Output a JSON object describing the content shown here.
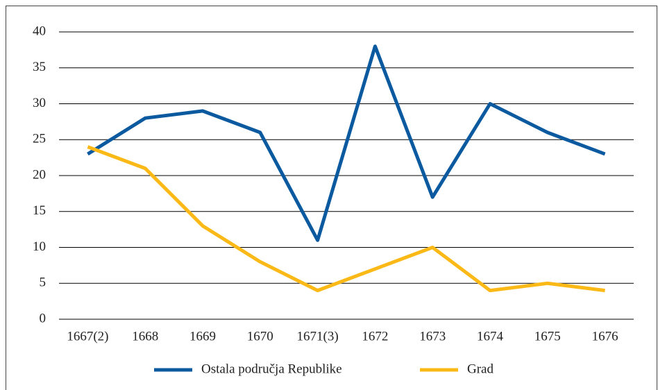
{
  "chart_data": {
    "type": "line",
    "categories": [
      "1667(2)",
      "1668",
      "1669",
      "1670",
      "1671(3)",
      "1672",
      "1673",
      "1674",
      "1675",
      "1676"
    ],
    "series": [
      {
        "name": "Ostala područja Republike",
        "color": "#0b5aa0",
        "values": [
          23,
          28,
          29,
          26,
          11,
          38,
          17,
          30,
          26,
          23
        ]
      },
      {
        "name": "Grad",
        "color": "#fbb918",
        "values": [
          24,
          21,
          13,
          8,
          4,
          7,
          10,
          4,
          5,
          4
        ]
      }
    ],
    "ylim": [
      0,
      40
    ],
    "yticks": [
      0,
      5,
      10,
      15,
      20,
      25,
      30,
      35,
      40
    ],
    "grid": true,
    "legend": "bottom"
  }
}
